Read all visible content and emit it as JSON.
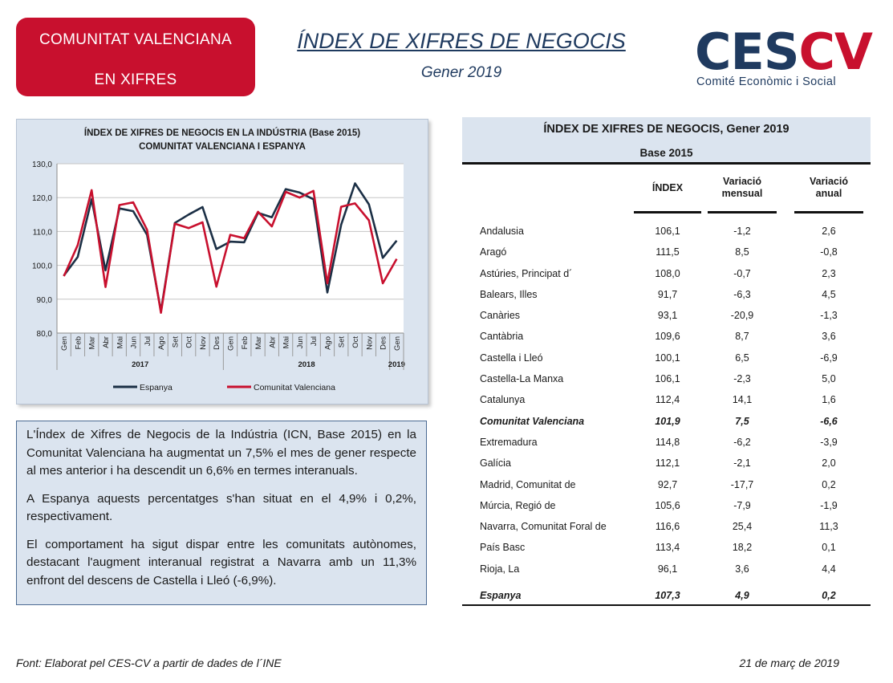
{
  "header": {
    "badge_line1": "COMUNITAT VALENCIANA",
    "badge_line2": "EN XIFRES",
    "title": "ÍNDEX DE XIFRES DE NEGOCIS",
    "subtitle": "Gener 2019",
    "logo_text_ces": "CES",
    "logo_text_cv": "CV",
    "logo_tagline": "Comité Econòmic i Social",
    "colors": {
      "accent_red": "#c8102e",
      "navy": "#1f3a5f"
    }
  },
  "chart_data": {
    "type": "line",
    "title": "ÍNDEX DE XIFRES DE NEGOCIS EN LA INDÚSTRIA (Base 2015)",
    "subtitle": "COMUNITAT  VALENCIANA  I ESPANYA",
    "xlabel": "",
    "ylabel": "",
    "ylim": [
      80,
      130
    ],
    "yticks": [
      "80,0",
      "90,0",
      "100,0",
      "110,0",
      "120,0",
      "130,0"
    ],
    "y_tick_values": [
      80,
      90,
      100,
      110,
      120,
      130
    ],
    "categories": [
      "Gen",
      "Feb",
      "Mar",
      "Abr",
      "Mai",
      "Jun",
      "Jul",
      "Ago",
      "Set",
      "Oct",
      "Nov",
      "Des",
      "Gen",
      "Feb",
      "Mar",
      "Abr",
      "Mai",
      "Jun",
      "Jul",
      "Ago",
      "Set",
      "Oct",
      "Nov",
      "Des",
      "Gen"
    ],
    "year_groups": [
      {
        "label": "2017",
        "start": 0,
        "end": 11
      },
      {
        "label": "2018",
        "start": 12,
        "end": 23
      },
      {
        "label": "2019",
        "start": 24,
        "end": 24
      }
    ],
    "grid": true,
    "legend_position": "bottom",
    "series": [
      {
        "name": "Espanya",
        "color": "#1b2f45",
        "values": [
          97.0,
          102.5,
          119.5,
          98.5,
          116.8,
          116.0,
          109.0,
          86.5,
          112.5,
          115.0,
          117.2,
          104.8,
          107.0,
          106.8,
          115.5,
          114.2,
          122.5,
          121.5,
          119.5,
          92.0,
          112.0,
          124.2,
          118.0,
          102.2,
          107.3
        ]
      },
      {
        "name": "Comunitat Valenciana",
        "color": "#c8102e",
        "values": [
          96.8,
          106.0,
          122.2,
          93.6,
          117.8,
          118.6,
          110.5,
          86.0,
          112.3,
          111.0,
          112.7,
          93.7,
          109.0,
          108.0,
          115.8,
          111.5,
          121.7,
          120.0,
          122.0,
          94.7,
          117.3,
          118.3,
          113.3,
          94.7,
          101.9
        ]
      }
    ]
  },
  "commentary": {
    "p1": "L'Índex de Xifres de Negocis de la Indústria (ICN, Base 2015) en la Comunitat Valenciana ha augmentat un 7,5% el mes de gener respecte al mes anterior i ha descendit un 6,6% en termes interanuals.",
    "p2": "A Espanya aquests percentatges s'han situat en el 4,9% i 0,2%, respectivament.",
    "p3": "El comportament ha sigut dispar entre les comunitats autònomes, destacant l'augment interanual registrat a Navarra amb un 11,3% enfront del descens de Castella i Lleó (-6,9%)."
  },
  "table": {
    "title": "ÍNDEX DE XIFRES DE NEGOCIS, Gener 2019",
    "subtitle": "Base 2015",
    "col_index": "ÍNDEX",
    "col_monthly": "Variació\nmensual",
    "col_annual": "Variació\nanual",
    "rows": [
      {
        "name": "Andalusia",
        "index": "106,1",
        "monthly": "-1,2",
        "annual": "2,6"
      },
      {
        "name": "Aragó",
        "index": "111,5",
        "monthly": "8,5",
        "annual": "-0,8"
      },
      {
        "name": "Astúries, Principat d´",
        "index": "108,0",
        "monthly": "-0,7",
        "annual": "2,3"
      },
      {
        "name": "Balears, Illes",
        "index": "91,7",
        "monthly": "-6,3",
        "annual": "4,5"
      },
      {
        "name": "Canàries",
        "index": "93,1",
        "monthly": "-20,9",
        "annual": "-1,3"
      },
      {
        "name": "Cantàbria",
        "index": "109,6",
        "monthly": "8,7",
        "annual": "3,6"
      },
      {
        "name": "Castella i Lleó",
        "index": "100,1",
        "monthly": "6,5",
        "annual": "-6,9"
      },
      {
        "name": "Castella-La Manxa",
        "index": "106,1",
        "monthly": "-2,3",
        "annual": "5,0"
      },
      {
        "name": "Catalunya",
        "index": "112,4",
        "monthly": "14,1",
        "annual": "1,6"
      },
      {
        "name": "Comunitat Valenciana",
        "index": "101,9",
        "monthly": "7,5",
        "annual": "-6,6",
        "highlight": true
      },
      {
        "name": "Extremadura",
        "index": "114,8",
        "monthly": "-6,2",
        "annual": "-3,9"
      },
      {
        "name": "Galícia",
        "index": "112,1",
        "monthly": "-2,1",
        "annual": "2,0"
      },
      {
        "name": "Madrid, Comunitat de",
        "index": "92,7",
        "monthly": "-17,7",
        "annual": "0,2"
      },
      {
        "name": "Múrcia, Regió de",
        "index": "105,6",
        "monthly": "-7,9",
        "annual": "-1,9"
      },
      {
        "name": "Navarra, Comunitat Foral de",
        "index": "116,6",
        "monthly": "25,4",
        "annual": "11,3"
      },
      {
        "name": "País Basc",
        "index": "113,4",
        "monthly": "18,2",
        "annual": "0,1"
      },
      {
        "name": "Rioja, La",
        "index": "96,1",
        "monthly": "3,6",
        "annual": "4,4"
      },
      {
        "name": "Espanya",
        "index": "107,3",
        "monthly": "4,9",
        "annual": "0,2",
        "highlight": true
      }
    ]
  },
  "footer": {
    "source": "Font: Elaborat pel CES-CV a partir de dades de l´INE",
    "date": "21 de març de 2019"
  }
}
